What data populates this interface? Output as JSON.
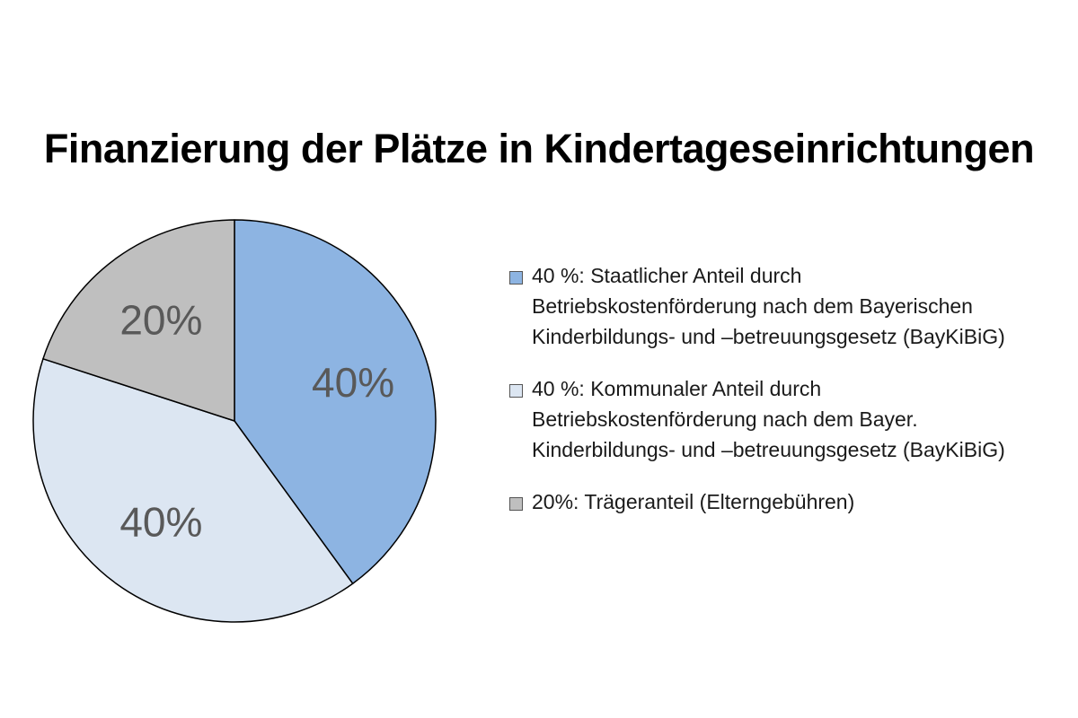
{
  "chart_data": {
    "type": "pie",
    "title": "Finanzierung der Plätze in Kindertageseinrichtungen",
    "legend_position": "right",
    "slices": [
      {
        "value": 40,
        "data_label": "40%",
        "color": "#8db4e2",
        "legend_lines": [
          "40 %: Staatlicher Anteil durch",
          "Betriebskostenförderung nach dem Bayerischen",
          "Kinderbildungs- und –betreuungsgesetz (BayKiBiG)"
        ]
      },
      {
        "value": 40,
        "data_label": "40%",
        "color": "#dce6f2",
        "legend_lines": [
          "40 %: Kommunaler Anteil durch",
          "Betriebskostenförderung nach dem Bayer.",
          "Kinderbildungs- und –betreuungsgesetz (BayKiBiG)"
        ]
      },
      {
        "value": 20,
        "data_label": "20%",
        "color": "#bfbfbf",
        "legend_lines": [
          "20%: Trägeranteil (Elterngebühren)"
        ]
      }
    ]
  }
}
